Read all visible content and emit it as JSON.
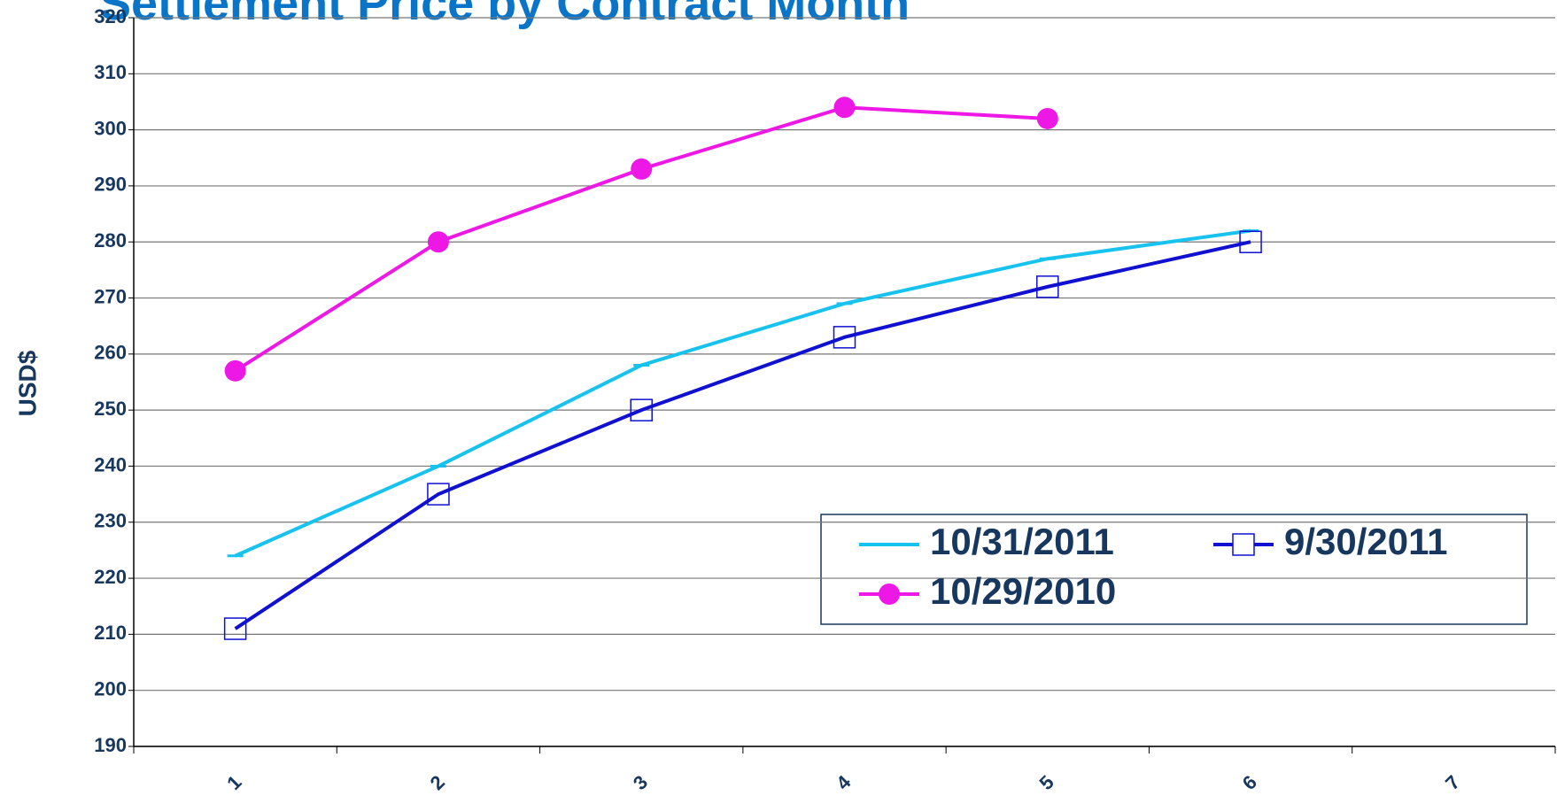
{
  "chart_data": {
    "type": "line",
    "title": "Settlement Price by Contract Month",
    "ylabel": "USD$",
    "categories": [
      "1",
      "2",
      "3",
      "4",
      "5",
      "6",
      "7"
    ],
    "series": [
      {
        "name": "10/31/2011",
        "color": "#17c3ee",
        "marker": "dash",
        "values": [
          224,
          240,
          258,
          269,
          277,
          282,
          null
        ]
      },
      {
        "name": "9/30/2011",
        "color": "#1010d0",
        "marker": "square",
        "values": [
          211,
          235,
          250,
          263,
          272,
          280,
          null
        ]
      },
      {
        "name": "10/29/2010",
        "color": "#ee18e6",
        "marker": "circle",
        "values": [
          257,
          280,
          293,
          304,
          302,
          null,
          null
        ]
      }
    ],
    "ylim": [
      190,
      320
    ],
    "yticks": [
      190,
      200,
      210,
      220,
      230,
      240,
      250,
      260,
      270,
      280,
      290,
      300,
      310,
      320
    ],
    "grid": true
  }
}
